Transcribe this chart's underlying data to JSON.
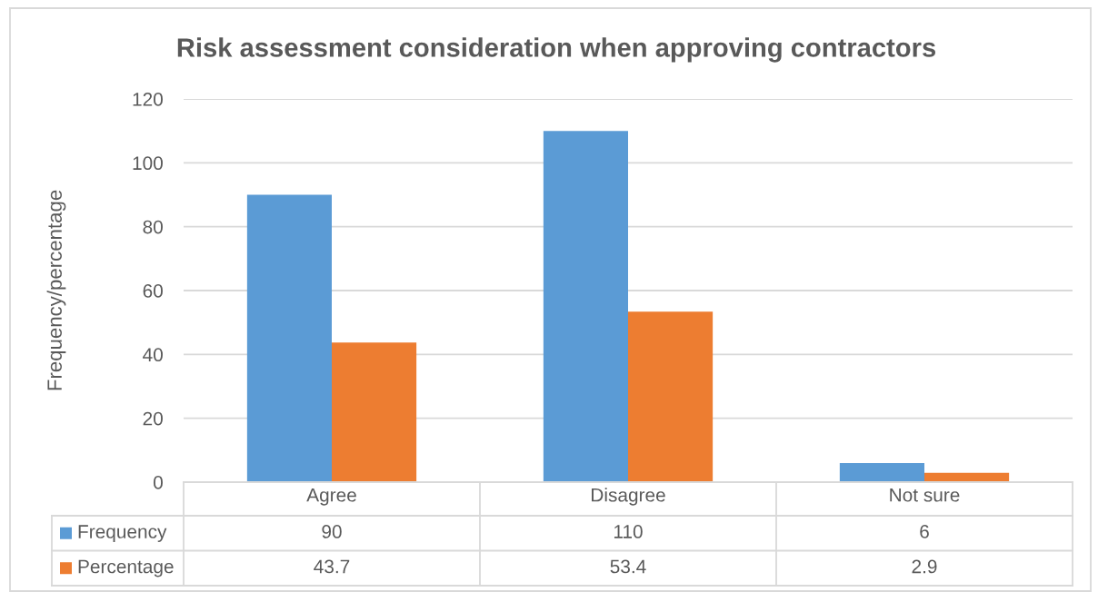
{
  "chart_data": {
    "type": "bar",
    "title": "Risk assessment consideration when approving contractors",
    "ylabel": "Frequency/percentage",
    "categories": [
      "Agree",
      "Disagree",
      "Not sure"
    ],
    "series": [
      {
        "name": "Frequency",
        "color": "#5b9bd5",
        "values": [
          90,
          110,
          6
        ]
      },
      {
        "name": "Percentage",
        "color": "#ed7d31",
        "values": [
          43.7,
          53.4,
          2.9
        ]
      }
    ],
    "ylim": [
      0,
      120
    ],
    "yticks": [
      0,
      20,
      40,
      60,
      80,
      100,
      120
    ],
    "grid": "y",
    "legend": "bottom",
    "data_labels": true
  }
}
